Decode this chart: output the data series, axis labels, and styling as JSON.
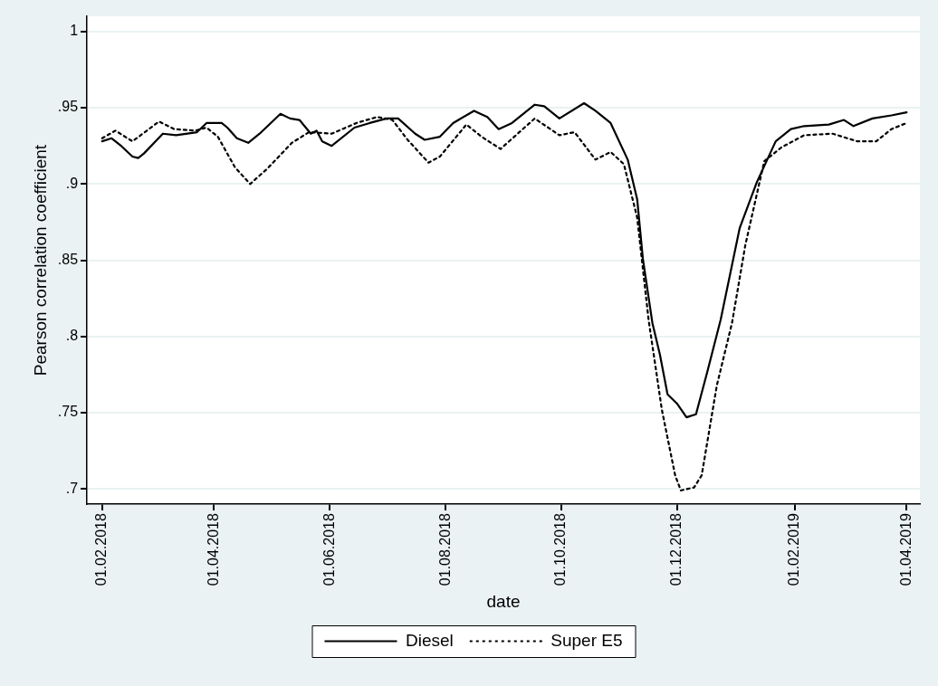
{
  "chart_data": {
    "type": "line",
    "xlabel": "date",
    "ylabel": "Pearson correlation coefficient",
    "xlim": [
      "2018-01-24",
      "2019-04-08"
    ],
    "ylim": [
      0.69,
      1.01
    ],
    "yticks": [
      {
        "value": 0.7,
        "label": ".7"
      },
      {
        "value": 0.75,
        "label": ".75"
      },
      {
        "value": 0.8,
        "label": ".8"
      },
      {
        "value": 0.85,
        "label": ".85"
      },
      {
        "value": 0.9,
        "label": ".9"
      },
      {
        "value": 0.95,
        "label": ".95"
      },
      1
    ],
    "xticks": [
      {
        "value": "2018-02-01",
        "label": "01.02.2018"
      },
      {
        "value": "2018-04-01",
        "label": "01.04.2018"
      },
      {
        "value": "2018-06-01",
        "label": "01.06.2018"
      },
      {
        "value": "2018-08-01",
        "label": "01.08.2018"
      },
      {
        "value": "2018-10-01",
        "label": "01.10.2018"
      },
      {
        "value": "2018-12-01",
        "label": "01.12.2018"
      },
      {
        "value": "2019-02-01",
        "label": "01.02.2019"
      },
      {
        "value": "2019-04-01",
        "label": "01.04.2019"
      }
    ],
    "grid": "y",
    "legend": "bottom",
    "marker": "none",
    "series": [
      {
        "name": "Diesel",
        "color": "#000000",
        "line_style": "solid",
        "x": [
          "2018-02-01",
          "2018-02-06",
          "2018-02-11",
          "2018-02-17",
          "2018-02-20",
          "2018-02-23",
          "2018-03-05",
          "2018-03-12",
          "2018-03-23",
          "2018-03-28",
          "2018-04-05",
          "2018-04-08",
          "2018-04-13",
          "2018-04-19",
          "2018-04-25",
          "2018-05-06",
          "2018-05-11",
          "2018-05-16",
          "2018-05-22",
          "2018-05-25",
          "2018-05-28",
          "2018-06-02",
          "2018-06-14",
          "2018-06-22",
          "2018-07-01",
          "2018-07-07",
          "2018-07-16",
          "2018-07-21",
          "2018-07-29",
          "2018-08-05",
          "2018-08-16",
          "2018-08-23",
          "2018-08-29",
          "2018-09-05",
          "2018-09-17",
          "2018-09-22",
          "2018-09-30",
          "2018-10-13",
          "2018-10-19",
          "2018-10-27",
          "2018-11-05",
          "2018-11-10",
          "2018-11-13",
          "2018-11-18",
          "2018-11-22",
          "2018-11-26",
          "2018-12-01",
          "2018-12-06",
          "2018-12-11",
          "2018-12-17",
          "2018-12-24",
          "2019-01-03",
          "2019-01-12",
          "2019-01-22",
          "2019-01-30",
          "2019-02-06",
          "2019-02-19",
          "2019-02-27",
          "2019-03-04",
          "2019-03-14",
          "2019-03-24",
          "2019-04-01"
        ],
        "values": [
          0.928,
          0.93,
          0.925,
          0.918,
          0.917,
          0.92,
          0.933,
          0.932,
          0.934,
          0.94,
          0.94,
          0.937,
          0.93,
          0.927,
          0.933,
          0.946,
          0.943,
          0.942,
          0.933,
          0.935,
          0.928,
          0.925,
          0.937,
          0.94,
          0.943,
          0.943,
          0.933,
          0.929,
          0.931,
          0.94,
          0.948,
          0.944,
          0.936,
          0.94,
          0.952,
          0.951,
          0.943,
          0.953,
          0.948,
          0.94,
          0.916,
          0.89,
          0.851,
          0.809,
          0.788,
          0.762,
          0.756,
          0.747,
          0.749,
          0.777,
          0.811,
          0.871,
          0.901,
          0.928,
          0.936,
          0.938,
          0.939,
          0.942,
          0.938,
          0.943,
          0.945,
          0.947
        ]
      },
      {
        "name": "Super E5",
        "color": "#000000",
        "line_style": "dotted",
        "x": [
          "2018-02-01",
          "2018-02-08",
          "2018-02-17",
          "2018-03-03",
          "2018-03-11",
          "2018-03-22",
          "2018-03-28",
          "2018-04-03",
          "2018-04-12",
          "2018-04-20",
          "2018-04-29",
          "2018-05-12",
          "2018-05-21",
          "2018-06-02",
          "2018-06-15",
          "2018-06-26",
          "2018-07-04",
          "2018-07-12",
          "2018-07-23",
          "2018-07-29",
          "2018-08-12",
          "2018-08-20",
          "2018-08-30",
          "2018-09-17",
          "2018-09-30",
          "2018-10-08",
          "2018-10-19",
          "2018-10-27",
          "2018-11-03",
          "2018-11-10",
          "2018-11-16",
          "2018-11-23",
          "2018-11-30",
          "2018-12-03",
          "2018-12-10",
          "2018-12-14",
          "2018-12-22",
          "2018-12-30",
          "2019-01-06",
          "2019-01-16",
          "2019-01-25",
          "2019-02-06",
          "2019-02-21",
          "2019-03-06",
          "2019-03-16",
          "2019-03-24",
          "2019-04-01"
        ],
        "values": [
          0.93,
          0.935,
          0.928,
          0.941,
          0.936,
          0.935,
          0.937,
          0.931,
          0.911,
          0.9,
          0.91,
          0.927,
          0.934,
          0.933,
          0.94,
          0.944,
          0.942,
          0.929,
          0.914,
          0.918,
          0.939,
          0.931,
          0.923,
          0.943,
          0.932,
          0.934,
          0.916,
          0.921,
          0.913,
          0.878,
          0.811,
          0.752,
          0.709,
          0.699,
          0.701,
          0.709,
          0.768,
          0.809,
          0.86,
          0.915,
          0.924,
          0.932,
          0.933,
          0.928,
          0.928,
          0.936,
          0.94
        ]
      }
    ]
  }
}
